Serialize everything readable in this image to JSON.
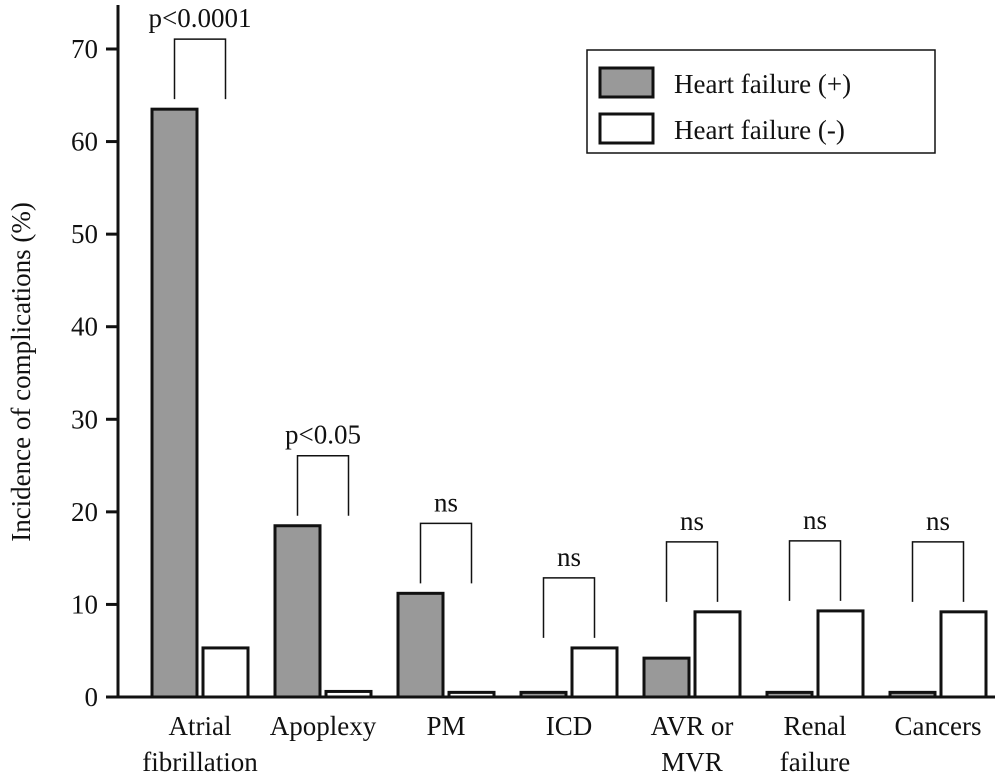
{
  "chart_data": {
    "type": "bar",
    "ylabel": "Incidence of complications (%)",
    "ylim": [
      0,
      70
    ],
    "yticks": [
      0,
      10,
      20,
      30,
      40,
      50,
      60,
      70
    ],
    "grid": false,
    "legend_position": "top-right",
    "categories": [
      [
        "Atrial",
        "fibrillation"
      ],
      [
        "Apoplexy"
      ],
      [
        "PM"
      ],
      [
        "ICD"
      ],
      [
        "AVR or",
        "MVR"
      ],
      [
        "Renal",
        "failure"
      ],
      [
        "Cancers"
      ]
    ],
    "series": [
      {
        "name": "Heart failure (+)",
        "color": "#999999",
        "values": [
          63.5,
          18.5,
          11.2,
          0.5,
          4.2,
          0.5,
          0.5
        ]
      },
      {
        "name": "Heart failure (-)",
        "color": "#ffffff",
        "values": [
          5.3,
          0.6,
          0.5,
          5.3,
          9.2,
          9.3,
          9.2
        ]
      }
    ],
    "significance": [
      "p<0.0001",
      "p<0.05",
      "ns",
      "ns",
      "ns",
      "ns",
      "ns"
    ]
  }
}
